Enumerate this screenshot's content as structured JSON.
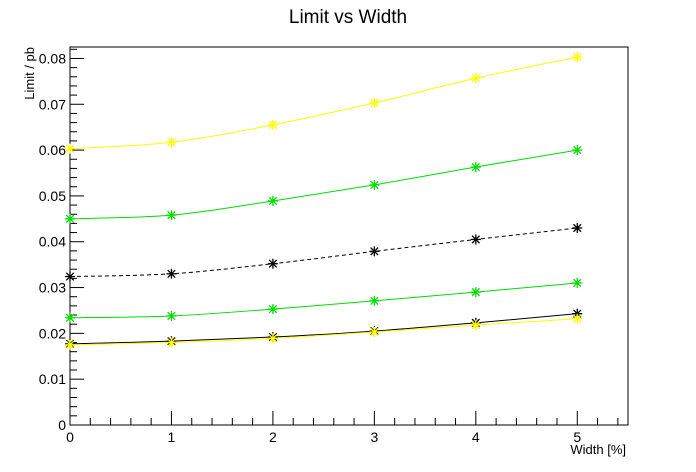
{
  "chart_data": {
    "type": "line",
    "title": "Limit vs Width",
    "xlabel": "Width [%]",
    "ylabel": "Limit / pb",
    "xlim": [
      0,
      5.5
    ],
    "ylim": [
      0,
      0.0825
    ],
    "x_ticks": [
      "0",
      "1",
      "2",
      "3",
      "4",
      "5"
    ],
    "y_ticks": [
      "0",
      "0.01",
      "0.02",
      "0.03",
      "0.04",
      "0.05",
      "0.06",
      "0.07",
      "0.08"
    ],
    "grid": false,
    "legend": "none",
    "x": [
      0,
      1,
      2,
      3,
      4,
      5
    ],
    "series": [
      {
        "values": [
          0.0603,
          0.0617,
          0.0655,
          0.0703,
          0.0757,
          0.0803
        ],
        "color": "#ffff00",
        "dash": false
      },
      {
        "values": [
          0.045,
          0.0458,
          0.0489,
          0.0524,
          0.0563,
          0.06
        ],
        "color": "#00dd00",
        "dash": false
      },
      {
        "values": [
          0.0324,
          0.033,
          0.0352,
          0.0379,
          0.0405,
          0.043
        ],
        "color": "#000000",
        "dash": true
      },
      {
        "values": [
          0.0234,
          0.0238,
          0.0253,
          0.0271,
          0.029,
          0.031
        ],
        "color": "#00dd00",
        "dash": false
      },
      {
        "values": [
          0.0177,
          0.0183,
          0.0192,
          0.0205,
          0.0223,
          0.0243
        ],
        "color": "#000000",
        "dash": false
      },
      {
        "values": [
          0.0175,
          0.018,
          0.0189,
          0.0203,
          0.0218,
          0.0232
        ],
        "color": "#ffff00",
        "dash": false
      }
    ]
  }
}
